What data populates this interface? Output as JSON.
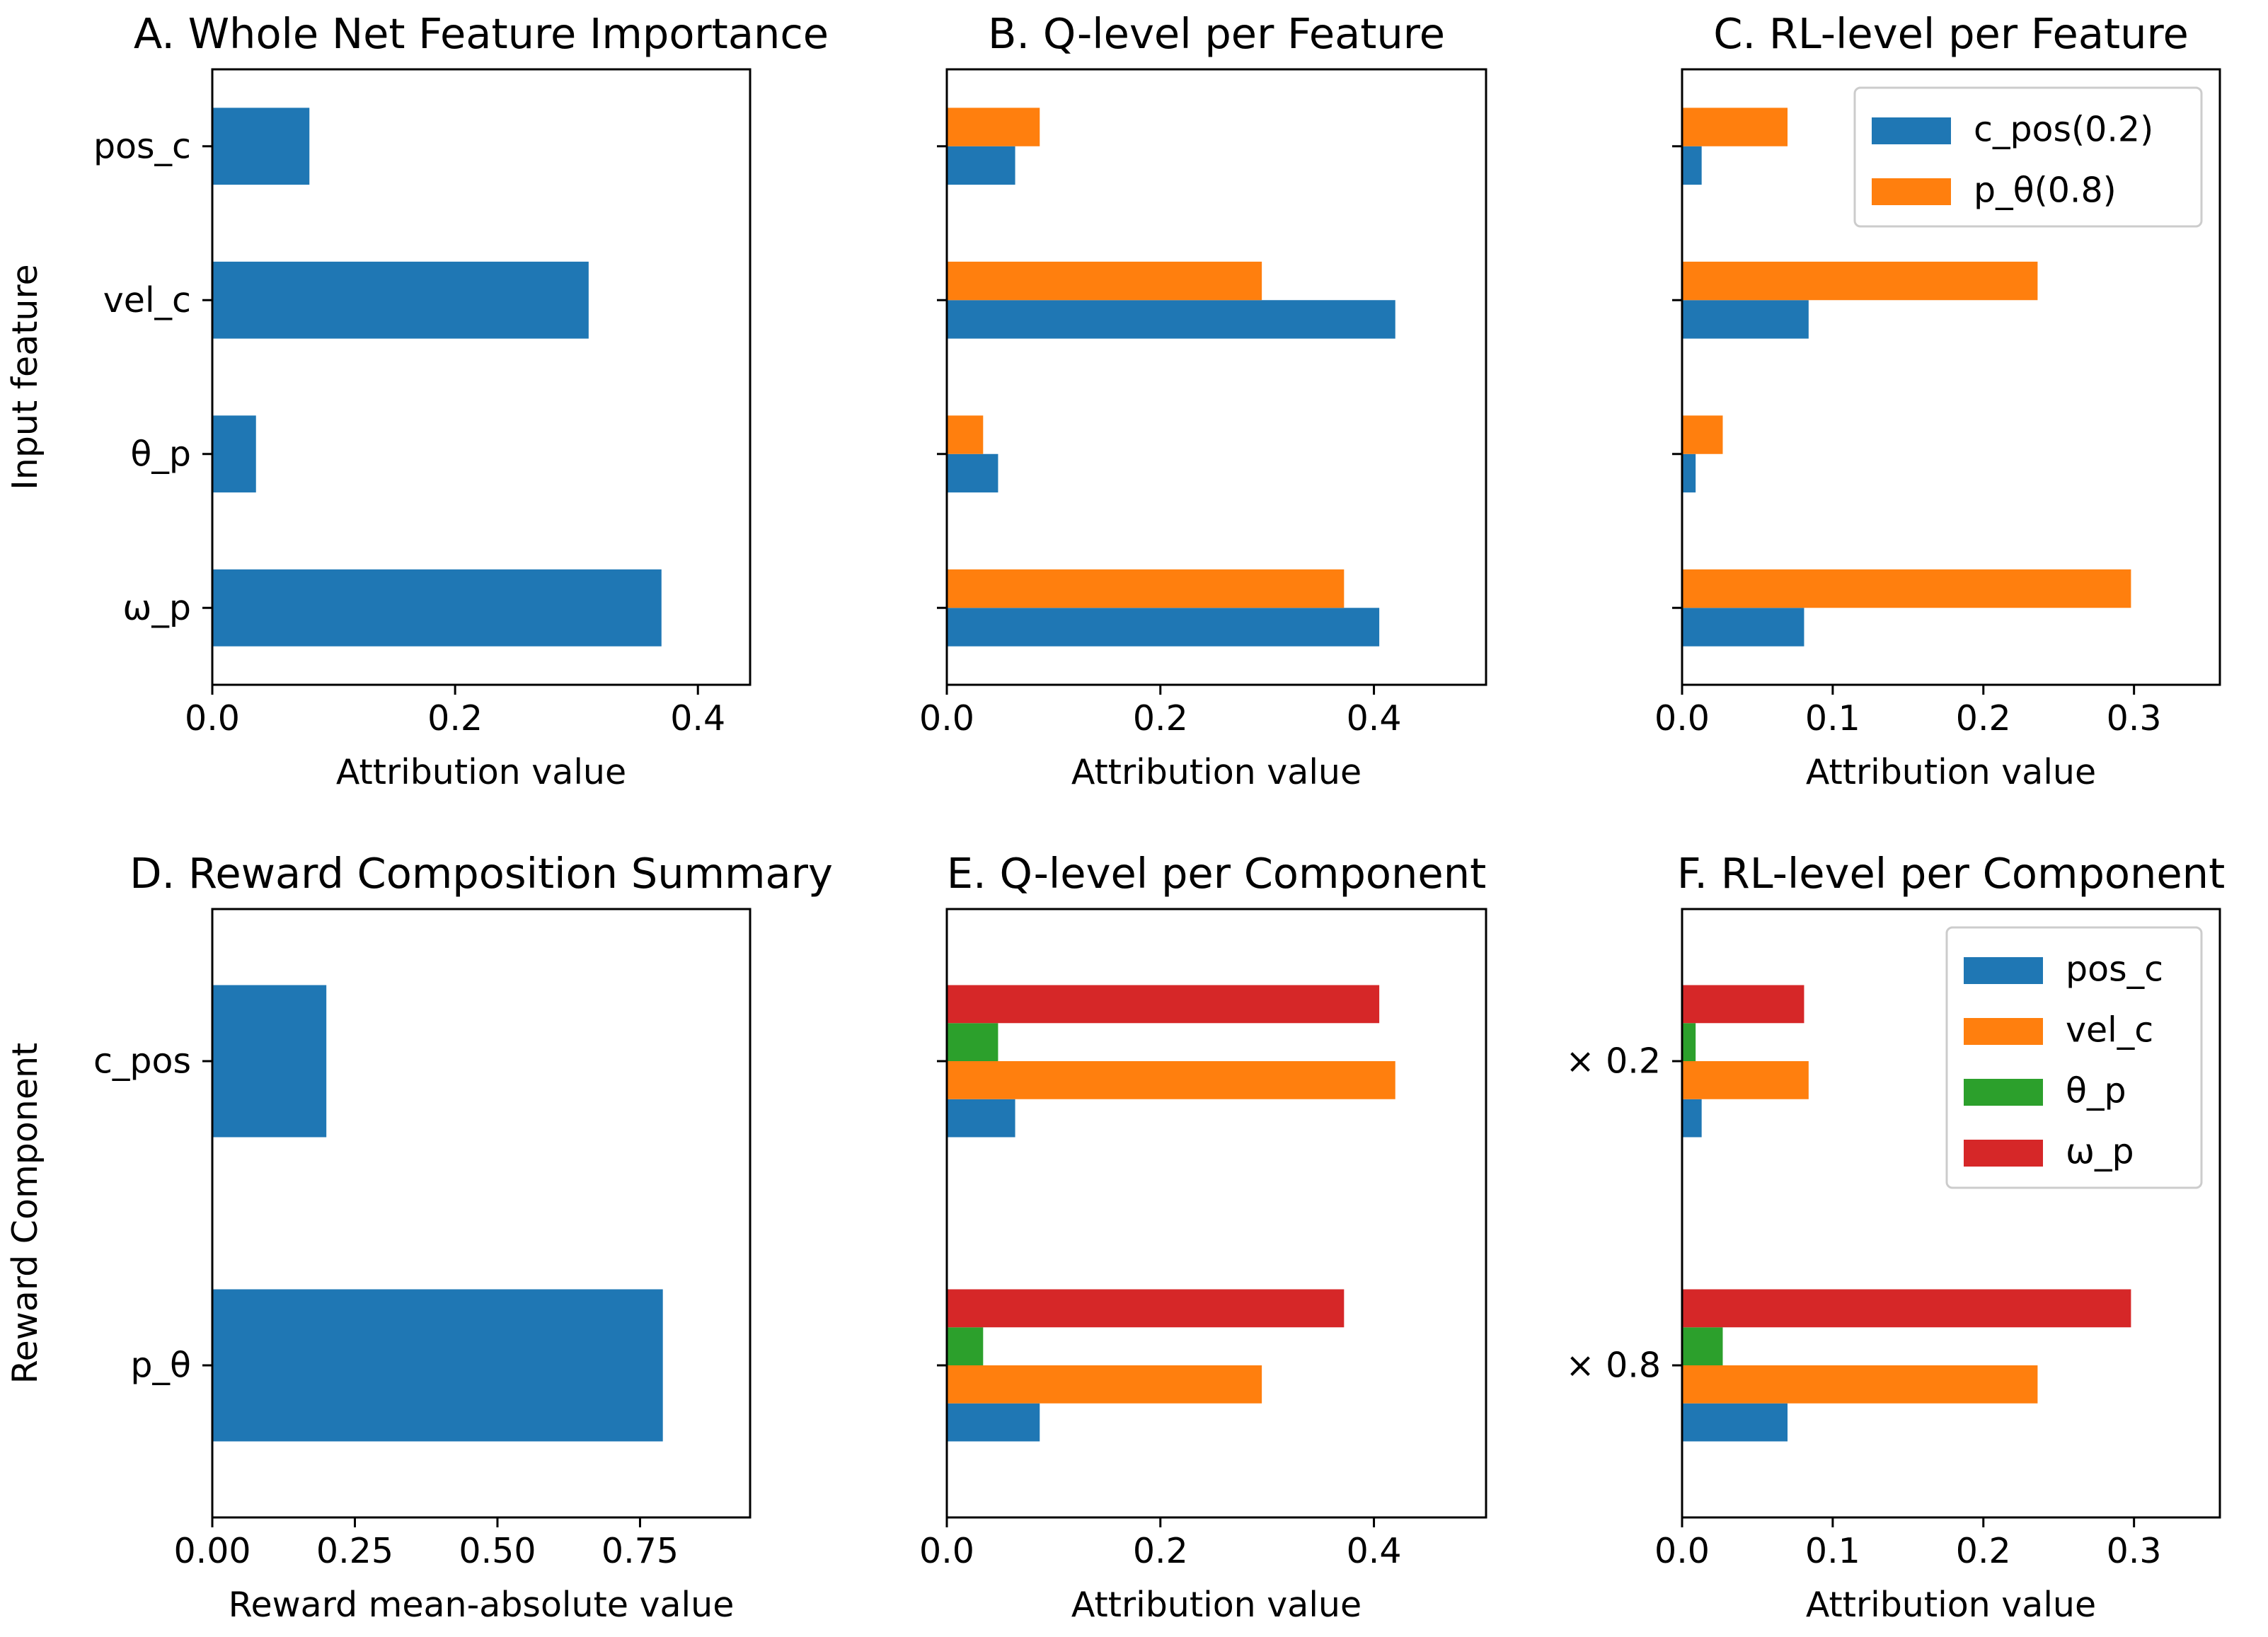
{
  "colors": {
    "blue": "#1f77b4",
    "orange": "#ff7f0e",
    "green": "#2ca02c",
    "red": "#d62728",
    "legend_border": "#cccccc"
  },
  "chart_data": [
    {
      "id": "A",
      "type": "bar",
      "orientation": "horizontal",
      "title": "A. Whole Net Feature Importance",
      "xlabel": "Attribution value",
      "ylabel": "Input feature",
      "categories": [
        "pos_c",
        "vel_c",
        "θ_p",
        "ω_p"
      ],
      "series": [
        {
          "name": "",
          "color": "blue",
          "values": [
            0.08,
            0.31,
            0.036,
            0.37
          ]
        }
      ],
      "xlim": [
        0,
        0.443
      ],
      "xticks": [
        0.0,
        0.2,
        0.4
      ],
      "xtick_labels": [
        "0.0",
        "0.2",
        "0.4"
      ],
      "show_ytick_labels": true,
      "ytick_labels": [
        "pos_c",
        "vel_c",
        "θ_p",
        "ω_p"
      ],
      "grid": false,
      "legend": null
    },
    {
      "id": "B",
      "type": "bar",
      "orientation": "horizontal",
      "title": "B. Q-level per Feature",
      "xlabel": "Attribution value",
      "ylabel": "",
      "categories": [
        "pos_c",
        "vel_c",
        "θ_p",
        "ω_p"
      ],
      "series": [
        {
          "name": "c_pos(0.2)",
          "color": "blue",
          "values": [
            0.064,
            0.42,
            0.048,
            0.405
          ]
        },
        {
          "name": "p_θ(0.8)",
          "color": "orange",
          "values": [
            0.087,
            0.295,
            0.034,
            0.372
          ]
        }
      ],
      "xlim": [
        0,
        0.505
      ],
      "xticks": [
        0.0,
        0.2,
        0.4
      ],
      "xtick_labels": [
        "0.0",
        "0.2",
        "0.4"
      ],
      "show_ytick_labels": false,
      "ytick_labels": [],
      "grid": false,
      "legend": null
    },
    {
      "id": "C",
      "type": "bar",
      "orientation": "horizontal",
      "title": "C. RL-level per Feature",
      "xlabel": "Attribution value",
      "ylabel": "",
      "categories": [
        "pos_c",
        "vel_c",
        "θ_p",
        "ω_p"
      ],
      "series": [
        {
          "name": "c_pos(0.2)",
          "color": "blue",
          "values": [
            0.013,
            0.084,
            0.009,
            0.081
          ]
        },
        {
          "name": "p_θ(0.8)",
          "color": "orange",
          "values": [
            0.07,
            0.236,
            0.027,
            0.298
          ]
        }
      ],
      "xlim": [
        0,
        0.357
      ],
      "xticks": [
        0.0,
        0.1,
        0.2,
        0.3
      ],
      "xtick_labels": [
        "0.0",
        "0.1",
        "0.2",
        "0.3"
      ],
      "show_ytick_labels": false,
      "ytick_labels": [],
      "grid": false,
      "legend": {
        "position": "top-right",
        "entries": [
          "c_pos(0.2)",
          "p_θ(0.8)"
        ]
      }
    },
    {
      "id": "D",
      "type": "bar",
      "orientation": "horizontal",
      "title": "D. Reward Composition Summary",
      "xlabel": "Reward mean-absolute value",
      "ylabel": "Reward Component",
      "categories": [
        "c_pos",
        "p_θ"
      ],
      "series": [
        {
          "name": "",
          "color": "blue",
          "values": [
            0.2,
            0.79
          ]
        }
      ],
      "xlim": [
        0,
        0.943
      ],
      "xticks": [
        0.0,
        0.25,
        0.5,
        0.75
      ],
      "xtick_labels": [
        "0.00",
        "0.25",
        "0.50",
        "0.75"
      ],
      "show_ytick_labels": true,
      "ytick_labels": [
        "c_pos",
        "p_θ"
      ],
      "grid": false,
      "legend": null
    },
    {
      "id": "E",
      "type": "bar",
      "orientation": "horizontal",
      "title": "E. Q-level per Component",
      "xlabel": "Attribution value",
      "ylabel": "",
      "categories": [
        "c_pos",
        "p_θ"
      ],
      "series": [
        {
          "name": "pos_c",
          "color": "blue",
          "values": [
            0.064,
            0.087
          ]
        },
        {
          "name": "vel_c",
          "color": "orange",
          "values": [
            0.42,
            0.295
          ]
        },
        {
          "name": "θ_p",
          "color": "green",
          "values": [
            0.048,
            0.034
          ]
        },
        {
          "name": "ω_p",
          "color": "red",
          "values": [
            0.405,
            0.372
          ]
        }
      ],
      "xlim": [
        0,
        0.505
      ],
      "xticks": [
        0.0,
        0.2,
        0.4
      ],
      "xtick_labels": [
        "0.0",
        "0.2",
        "0.4"
      ],
      "show_ytick_labels": false,
      "ytick_labels": [],
      "grid": false,
      "legend": null
    },
    {
      "id": "F",
      "type": "bar",
      "orientation": "horizontal",
      "title": "F. RL-level per Component",
      "xlabel": "Attribution value",
      "ylabel": "",
      "categories": [
        "× 0.2",
        "× 0.8"
      ],
      "series": [
        {
          "name": "pos_c",
          "color": "blue",
          "values": [
            0.013,
            0.07
          ]
        },
        {
          "name": "vel_c",
          "color": "orange",
          "values": [
            0.084,
            0.236
          ]
        },
        {
          "name": "θ_p",
          "color": "green",
          "values": [
            0.009,
            0.027
          ]
        },
        {
          "name": "ω_p",
          "color": "red",
          "values": [
            0.081,
            0.298
          ]
        }
      ],
      "xlim": [
        0,
        0.357
      ],
      "xticks": [
        0.0,
        0.1,
        0.2,
        0.3
      ],
      "xtick_labels": [
        "0.0",
        "0.1",
        "0.2",
        "0.3"
      ],
      "show_ytick_labels": true,
      "ytick_labels": [
        "× 0.2",
        "× 0.8"
      ],
      "grid": false,
      "legend": {
        "position": "top-right",
        "entries": [
          "pos_c",
          "vel_c",
          "θ_p",
          "ω_p"
        ]
      }
    }
  ]
}
